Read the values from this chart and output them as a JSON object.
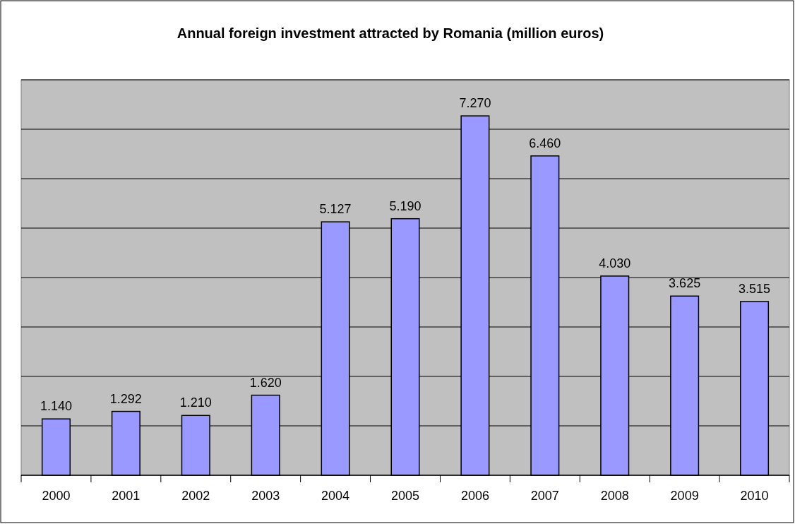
{
  "chart_data": {
    "type": "bar",
    "title": "Annual foreign investment attracted by Romania (million euros)",
    "categories": [
      "2000",
      "2001",
      "2002",
      "2003",
      "2004",
      "2005",
      "2006",
      "2007",
      "2008",
      "2009",
      "2010"
    ],
    "values": [
      1140,
      1292,
      1210,
      1620,
      5127,
      5190,
      7270,
      6460,
      4030,
      3625,
      3515
    ],
    "value_labels": [
      "1.140",
      "1.292",
      "1.210",
      "1.620",
      "5.127",
      "5.190",
      "7.270",
      "6.460",
      "4.030",
      "3.625",
      "3.515"
    ],
    "color": "#9999ff",
    "ylim": [
      0,
      8000
    ],
    "yticks": [
      {
        "value": 0,
        "label": null
      },
      {
        "value": 1000,
        "label": null
      },
      {
        "value": 2000,
        "label": null
      },
      {
        "value": 3000,
        "label": null
      },
      {
        "value": 4000,
        "label": null
      },
      {
        "value": 5000,
        "label": null
      },
      {
        "value": 6000,
        "label": null
      },
      {
        "value": 7000,
        "label": null
      },
      {
        "value": 8000,
        "label": null
      }
    ],
    "grid": "y",
    "tick_labels": "x"
  }
}
